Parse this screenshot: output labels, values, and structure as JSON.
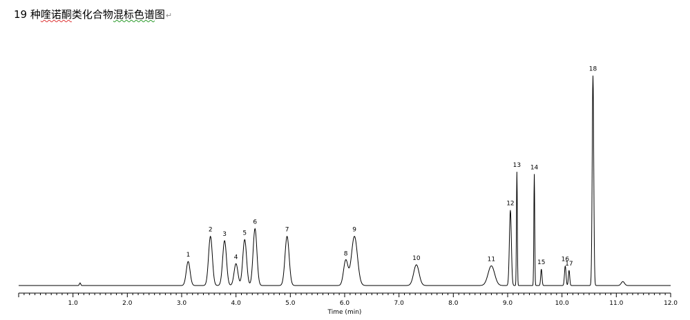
{
  "document": {
    "title_prefix": "19 种",
    "title_squiggle": "喹诺酮",
    "title_middle": "类化合物",
    "title_squiggle2": "混标色谱",
    "title_suffix": "图",
    "paragraph_mark": "↵"
  },
  "chart_data": {
    "type": "line",
    "title": "",
    "xlabel": "Time (min)",
    "ylabel": "",
    "xlim": [
      0,
      12.0
    ],
    "ylim": [
      0,
      100
    ],
    "x_ticks": [
      1.0,
      2.0,
      3.0,
      4.0,
      5.0,
      6.0,
      7.0,
      8.0,
      9.0,
      10.0,
      11.0,
      12.0
    ],
    "x_tick_labels": [
      "1.0",
      "2.0",
      "3.0",
      "4.0",
      "5.0",
      "6.0",
      "7.0",
      "8.0",
      "9.0",
      "10.0",
      "11.0",
      "12.0"
    ],
    "grid": false,
    "legend": "none",
    "line_color": "#000000",
    "baseline": 1.5,
    "peaks": [
      {
        "label": "",
        "rt": 1.13,
        "height": 1.2,
        "width": 0.012
      },
      {
        "label": "1",
        "rt": 3.12,
        "height": 11.0,
        "width": 0.035
      },
      {
        "label": "2",
        "rt": 3.53,
        "height": 22.5,
        "width": 0.035
      },
      {
        "label": "3",
        "rt": 3.79,
        "height": 20.5,
        "width": 0.035
      },
      {
        "label": "4",
        "rt": 4.0,
        "height": 10.0,
        "width": 0.035
      },
      {
        "label": "5",
        "rt": 4.16,
        "height": 21.0,
        "width": 0.035
      },
      {
        "label": "6",
        "rt": 4.35,
        "height": 26.0,
        "width": 0.035
      },
      {
        "label": "7",
        "rt": 4.94,
        "height": 22.5,
        "width": 0.038
      },
      {
        "label": "8",
        "rt": 6.02,
        "height": 11.5,
        "width": 0.04
      },
      {
        "label": "9",
        "rt": 6.18,
        "height": 22.5,
        "width": 0.055
      },
      {
        "label": "10",
        "rt": 7.32,
        "height": 9.5,
        "width": 0.05
      },
      {
        "label": "11",
        "rt": 8.7,
        "height": 9.0,
        "width": 0.06
      },
      {
        "label": "12",
        "rt": 9.05,
        "height": 34.5,
        "width": 0.018
      },
      {
        "label": "13",
        "rt": 9.17,
        "height": 52.0,
        "width": 0.008
      },
      {
        "label": "14",
        "rt": 9.49,
        "height": 51.0,
        "width": 0.008
      },
      {
        "label": "15",
        "rt": 9.62,
        "height": 7.5,
        "width": 0.012
      },
      {
        "label": "16",
        "rt": 10.06,
        "height": 9.0,
        "width": 0.014
      },
      {
        "label": "17",
        "rt": 10.13,
        "height": 7.0,
        "width": 0.012
      },
      {
        "label": "18",
        "rt": 10.57,
        "height": 96.0,
        "width": 0.014
      },
      {
        "label": "",
        "rt": 11.12,
        "height": 1.8,
        "width": 0.03
      }
    ]
  }
}
